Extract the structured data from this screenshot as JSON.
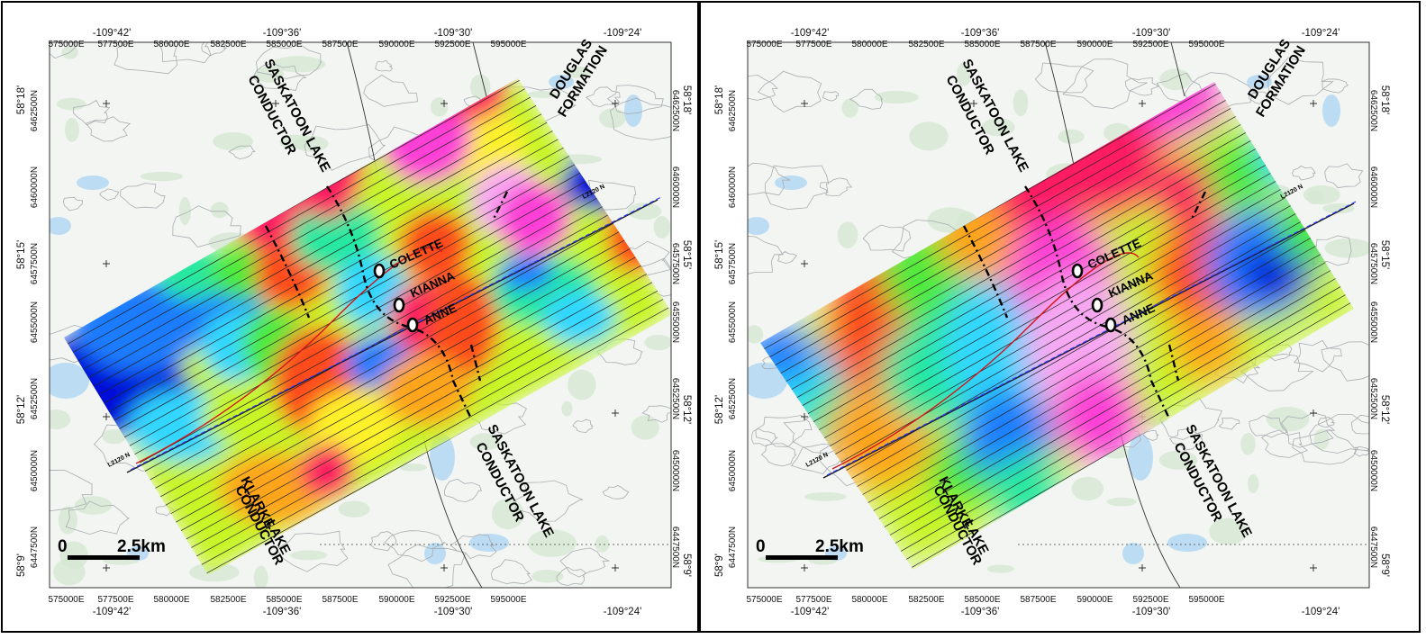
{
  "maps": [
    {
      "easting_top": [
        "575000E",
        "577500E",
        "580000E",
        "582500E",
        "585000E",
        "587500E",
        "590000E",
        "592500E",
        "595000E"
      ],
      "easting_bottom": [
        "575000E",
        "577500E",
        "580000E",
        "582500E",
        "585000E",
        "587500E",
        "590000E",
        "592500E",
        "595000E"
      ],
      "longitude_top": [
        "-109°42'",
        "-109°36'",
        "-109°30'",
        "-109°24'"
      ],
      "longitude_bottom": [
        "-109°42'",
        "-109°36'",
        "-109°30'",
        "-109°24'"
      ],
      "latitude": [
        "58°18'",
        "58°15'",
        "58°12'",
        "58°9'"
      ],
      "northing": [
        "6462500N",
        "6460000N",
        "6457500N",
        "6455000N",
        "6452500N",
        "6450000N",
        "6447500N"
      ],
      "labels": {
        "saskatoon_top_1": "SASKATOON LAKE",
        "saskatoon_top_2": "CONDUCTOR",
        "douglas_1": "DOUGLAS",
        "douglas_2": "FORMATION",
        "saskatoon_bottom_1": "SASKATOON LAKE",
        "saskatoon_bottom_2": "CONDUCTOR",
        "klarke_1": "KLARKE",
        "klarke_2": "LAKE",
        "klarke_3": "CONDUCTOR",
        "colette": "COLETTE",
        "kianna": "KIANNA",
        "anne": "ANNE",
        "line_ne": "L2120 N",
        "line_sw": "L2120 N"
      },
      "scale_bar": {
        "zero": "0",
        "distance": "2.5km"
      }
    },
    {
      "easting_top": [
        "575000E",
        "577500E",
        "580000E",
        "582500E",
        "585000E",
        "587500E",
        "590000E",
        "592500E",
        "595000E"
      ],
      "easting_bottom": [
        "575000E",
        "577500E",
        "580000E",
        "582500E",
        "585000E",
        "587500E",
        "590000E",
        "592500E",
        "595000E"
      ],
      "longitude_top": [
        "-109°42'",
        "-109°36'",
        "-109°30'",
        "-109°24'"
      ],
      "longitude_bottom": [
        "-109°42'",
        "-109°36'",
        "-109°30'",
        "-109°24'"
      ],
      "latitude": [
        "58°18'",
        "58°15'",
        "58°12'",
        "58°9'"
      ],
      "northing": [
        "6462500N",
        "6460000N",
        "6457500N",
        "6455000N",
        "6452500N",
        "6450000N",
        "6447500N"
      ],
      "labels": {
        "saskatoon_top_1": "SASKATOON LAKE",
        "saskatoon_top_2": "CONDUCTOR",
        "douglas_1": "DOUGLAS",
        "douglas_2": "FORMATION",
        "saskatoon_bottom_1": "SASKATOON LAKE",
        "saskatoon_bottom_2": "CONDUCTOR",
        "klarke_1": "KLARKE",
        "klarke_2": "LAKE",
        "klarke_3": "CONDUCTOR",
        "colette": "COLETTE",
        "kianna": "KIANNA",
        "anne": "ANNE",
        "line_ne": "L2120 N",
        "line_sw": "L2120 N"
      },
      "scale_bar": {
        "zero": "0",
        "distance": "2.5km"
      }
    }
  ],
  "colors": {
    "anomaly_ramp": [
      "#0010d8",
      "#1a7bff",
      "#31d7ff",
      "#27e8a0",
      "#4bea3c",
      "#c7f526",
      "#fff12a",
      "#ffa51e",
      "#ff4b1b",
      "#ff1f62",
      "#ff3fd6",
      "#f7a8f2"
    ],
    "background_map": "#f2f5f2",
    "water": "#bcdcf3",
    "vegetation": "#d6e8d2"
  }
}
